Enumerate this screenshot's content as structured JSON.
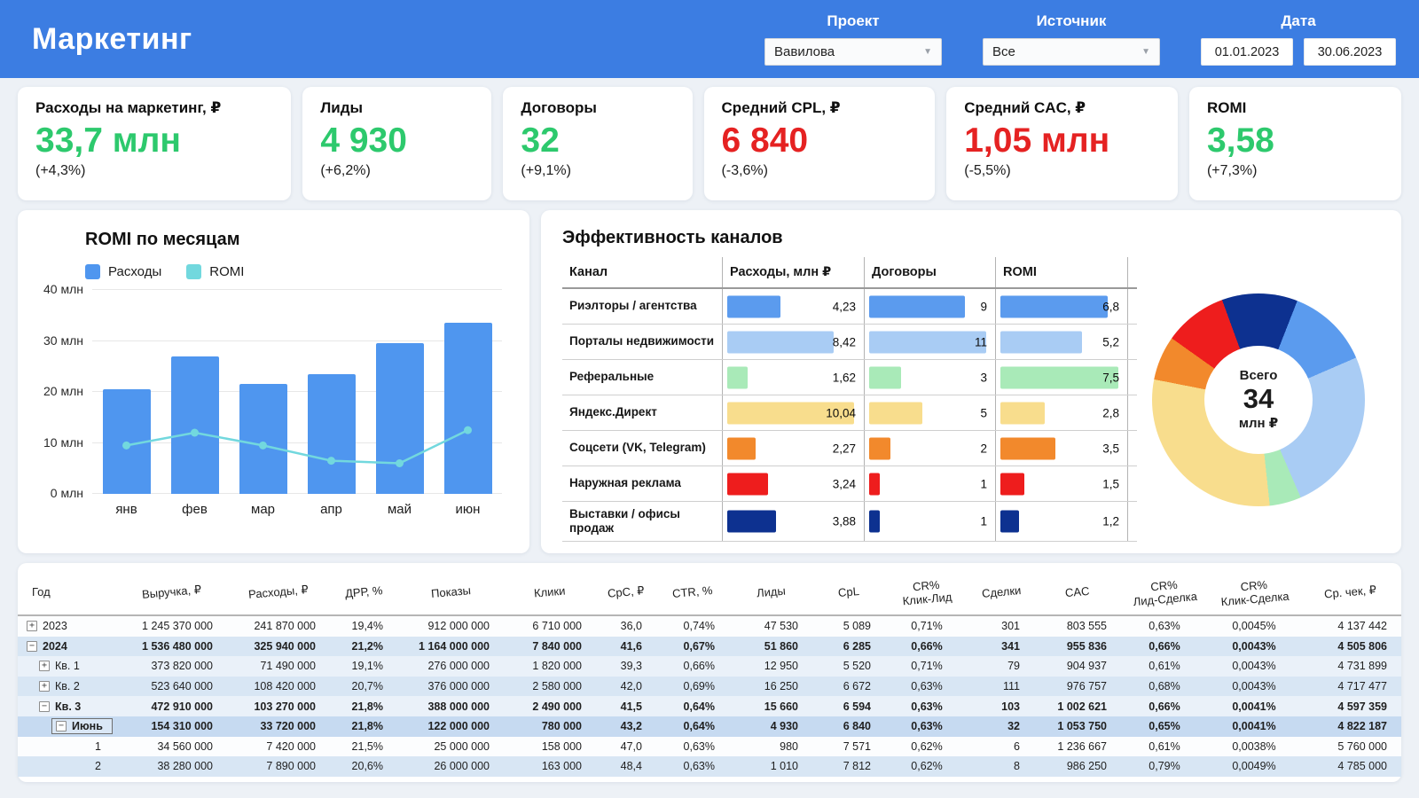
{
  "header": {
    "title": "Маркетинг",
    "filters": {
      "project": {
        "label": "Проект",
        "value": "Вавилова"
      },
      "source": {
        "label": "Источник",
        "value": "Все"
      },
      "date": {
        "label": "Дата",
        "from": "01.01.2023",
        "to": "30.06.2023"
      }
    }
  },
  "kpis": [
    {
      "label": "Расходы на маркетинг, ₽",
      "value": "33,7 млн",
      "delta": "(+4,3%)",
      "tone": "green"
    },
    {
      "label": "Лиды",
      "value": "4 930",
      "delta": "(+6,2%)",
      "tone": "green"
    },
    {
      "label": "Договоры",
      "value": "32",
      "delta": "(+9,1%)",
      "tone": "green"
    },
    {
      "label": "Средний CPL, ₽",
      "value": "6 840",
      "delta": "(-3,6%)",
      "tone": "red"
    },
    {
      "label": "Средний CAC, ₽",
      "value": "1,05 млн",
      "delta": "(-5,5%)",
      "tone": "red"
    },
    {
      "label": "ROMI",
      "value": "3,58",
      "delta": "(+7,3%)",
      "tone": "green"
    }
  ],
  "chart_data": [
    {
      "type": "bar",
      "title": "ROMI по месяцам",
      "categories": [
        "янв",
        "фев",
        "мар",
        "апр",
        "май",
        "июн"
      ],
      "series": [
        {
          "name": "Расходы",
          "kind": "bar",
          "color": "#4f96ef",
          "values": [
            20.5,
            27,
            21.5,
            23.5,
            29.5,
            33.5
          ]
        },
        {
          "name": "ROMI",
          "kind": "line",
          "color": "#72d8de",
          "values": [
            9.5,
            12,
            9.5,
            6.5,
            6,
            12.5
          ]
        }
      ],
      "ylim": [
        0,
        40
      ],
      "yticks": [
        "0 млн",
        "10 млн",
        "20 млн",
        "30 млн",
        "40 млн"
      ],
      "legend_position": "top-left",
      "grid": true
    },
    {
      "type": "pie",
      "title": "",
      "labels": [
        "Риэлторы / агентства",
        "Порталы недвижимости",
        "Реферальные",
        "Яндекс.Директ",
        "Соцсети (VK, Telegram)",
        "Наружная реклама",
        "Выставки / офисы продаж"
      ],
      "values": [
        4.23,
        8.42,
        1.62,
        10.04,
        2.27,
        3.24,
        3.88
      ],
      "colors": [
        "#5b9bee",
        "#a9ccf4",
        "#a9eab8",
        "#f8dd8d",
        "#f2892c",
        "#ee1d1d",
        "#0d3190"
      ],
      "center_label": "Всего",
      "center_value": "34",
      "center_unit": "млн ₽",
      "start_angle": -20,
      "draw_order": [
        6,
        0,
        1,
        2,
        3,
        4,
        5
      ]
    }
  ],
  "channels": {
    "title": "Эффективность каналов",
    "columns": [
      "Канал",
      "Расходы, млн ₽",
      "Договоры",
      "ROMI"
    ],
    "rows": [
      {
        "name": "Риэлторы / агентства",
        "color": "#5b9bee",
        "spend": "4,23",
        "spend_v": 4.23,
        "deals": "9",
        "deals_v": 9,
        "romi": "6,8",
        "romi_v": 6.8
      },
      {
        "name": "Порталы недвижимости",
        "color": "#a9ccf4",
        "spend": "8,42",
        "spend_v": 8.42,
        "deals": "11",
        "deals_v": 11,
        "romi": "5,2",
        "romi_v": 5.2
      },
      {
        "name": "Реферальные",
        "color": "#a9eab8",
        "spend": "1,62",
        "spend_v": 1.62,
        "deals": "3",
        "deals_v": 3,
        "romi": "7,5",
        "romi_v": 7.5
      },
      {
        "name": "Яндекс.Директ",
        "color": "#f8dd8d",
        "spend": "10,04",
        "spend_v": 10.04,
        "deals": "5",
        "deals_v": 5,
        "romi": "2,8",
        "romi_v": 2.8
      },
      {
        "name": "Соцсети (VK, Telegram)",
        "color": "#f2892c",
        "spend": "2,27",
        "spend_v": 2.27,
        "deals": "2",
        "deals_v": 2,
        "romi": "3,5",
        "romi_v": 3.5
      },
      {
        "name": "Наружная реклама",
        "color": "#ee1d1d",
        "spend": "3,24",
        "spend_v": 3.24,
        "deals": "1",
        "deals_v": 1,
        "romi": "1,5",
        "romi_v": 1.5
      },
      {
        "name": "Выставки / офисы продаж",
        "color": "#0d3190",
        "spend": "3,88",
        "spend_v": 3.88,
        "deals": "1",
        "deals_v": 1,
        "romi": "1,2",
        "romi_v": 1.2
      }
    ]
  },
  "table": {
    "columns": [
      "Год",
      "Выручка, ₽",
      "Расходы, ₽",
      "ДРР, %",
      "Показы",
      "Клики",
      "CpC, ₽",
      "CTR, %",
      "Лиды",
      "CpL",
      "CR%\nКлик-Лид",
      "Сделки",
      "CAC",
      "CR%\nЛид-Сделка",
      "CR%\nКлик-Сделка",
      "Ср. чек, ₽"
    ],
    "rows": [
      {
        "label": "2023",
        "icon": "plus",
        "indent": 0,
        "bold": false,
        "bg": "white",
        "label_align": "left",
        "values": [
          "1 245 370 000",
          "241 870 000",
          "19,4%",
          "912 000 000",
          "6 710 000",
          "36,0",
          "0,74%",
          "47 530",
          "5 089",
          "0,71%",
          "301",
          "803 555",
          "0,63%",
          "0,0045%",
          "4 137 442"
        ]
      },
      {
        "label": "2024",
        "icon": "minus",
        "indent": 0,
        "bold": true,
        "bg": "blue",
        "label_align": "left",
        "values": [
          "1 536 480 000",
          "325 940 000",
          "21,2%",
          "1 164 000 000",
          "7 840 000",
          "41,6",
          "0,67%",
          "51 860",
          "6 285",
          "0,66%",
          "341",
          "955 836",
          "0,66%",
          "0,0043%",
          "4 505 806"
        ]
      },
      {
        "label": "Кв. 1",
        "icon": "plus",
        "indent": 1,
        "bold": false,
        "bg": "light",
        "label_align": "left",
        "values": [
          "373 820 000",
          "71 490 000",
          "19,1%",
          "276 000 000",
          "1 820 000",
          "39,3",
          "0,66%",
          "12 950",
          "5 520",
          "0,71%",
          "79",
          "904 937",
          "0,61%",
          "0,0043%",
          "4 731 899"
        ]
      },
      {
        "label": "Кв. 2",
        "icon": "plus",
        "indent": 1,
        "bold": false,
        "bg": "blue",
        "label_align": "left",
        "values": [
          "523 640 000",
          "108 420 000",
          "20,7%",
          "376 000 000",
          "2 580 000",
          "42,0",
          "0,69%",
          "16 250",
          "6 672",
          "0,63%",
          "111",
          "976 757",
          "0,68%",
          "0,0043%",
          "4 717 477"
        ]
      },
      {
        "label": "Кв. 3",
        "icon": "minus",
        "indent": 1,
        "bold": true,
        "bg": "light",
        "label_align": "left",
        "values": [
          "472 910 000",
          "103 270 000",
          "21,8%",
          "388 000 000",
          "2 490 000",
          "41,5",
          "0,64%",
          "15 660",
          "6 594",
          "0,63%",
          "103",
          "1 002 621",
          "0,66%",
          "0,0041%",
          "4 597 359"
        ]
      },
      {
        "label": "Июнь",
        "icon": "minus",
        "indent": 2,
        "bold": true,
        "bg": "highlight",
        "boxed": true,
        "label_align": "left",
        "values": [
          "154 310 000",
          "33 720 000",
          "21,8%",
          "122 000 000",
          "780 000",
          "43,2",
          "0,64%",
          "4 930",
          "6 840",
          "0,63%",
          "32",
          "1 053 750",
          "0,65%",
          "0,0041%",
          "4 822 187"
        ]
      },
      {
        "label": "1",
        "icon": "none",
        "indent": 3,
        "bold": false,
        "bg": "white",
        "label_align": "right",
        "values": [
          "34 560 000",
          "7 420 000",
          "21,5%",
          "25 000 000",
          "158 000",
          "47,0",
          "0,63%",
          "980",
          "7 571",
          "0,62%",
          "6",
          "1 236 667",
          "0,61%",
          "0,0038%",
          "5 760 000"
        ]
      },
      {
        "label": "2",
        "icon": "none",
        "indent": 3,
        "bold": false,
        "bg": "blue",
        "label_align": "right",
        "values": [
          "38 280 000",
          "7 890 000",
          "20,6%",
          "26 000 000",
          "163 000",
          "48,4",
          "0,63%",
          "1 010",
          "7 812",
          "0,62%",
          "8",
          "986 250",
          "0,79%",
          "0,0049%",
          "4 785 000"
        ]
      }
    ]
  }
}
